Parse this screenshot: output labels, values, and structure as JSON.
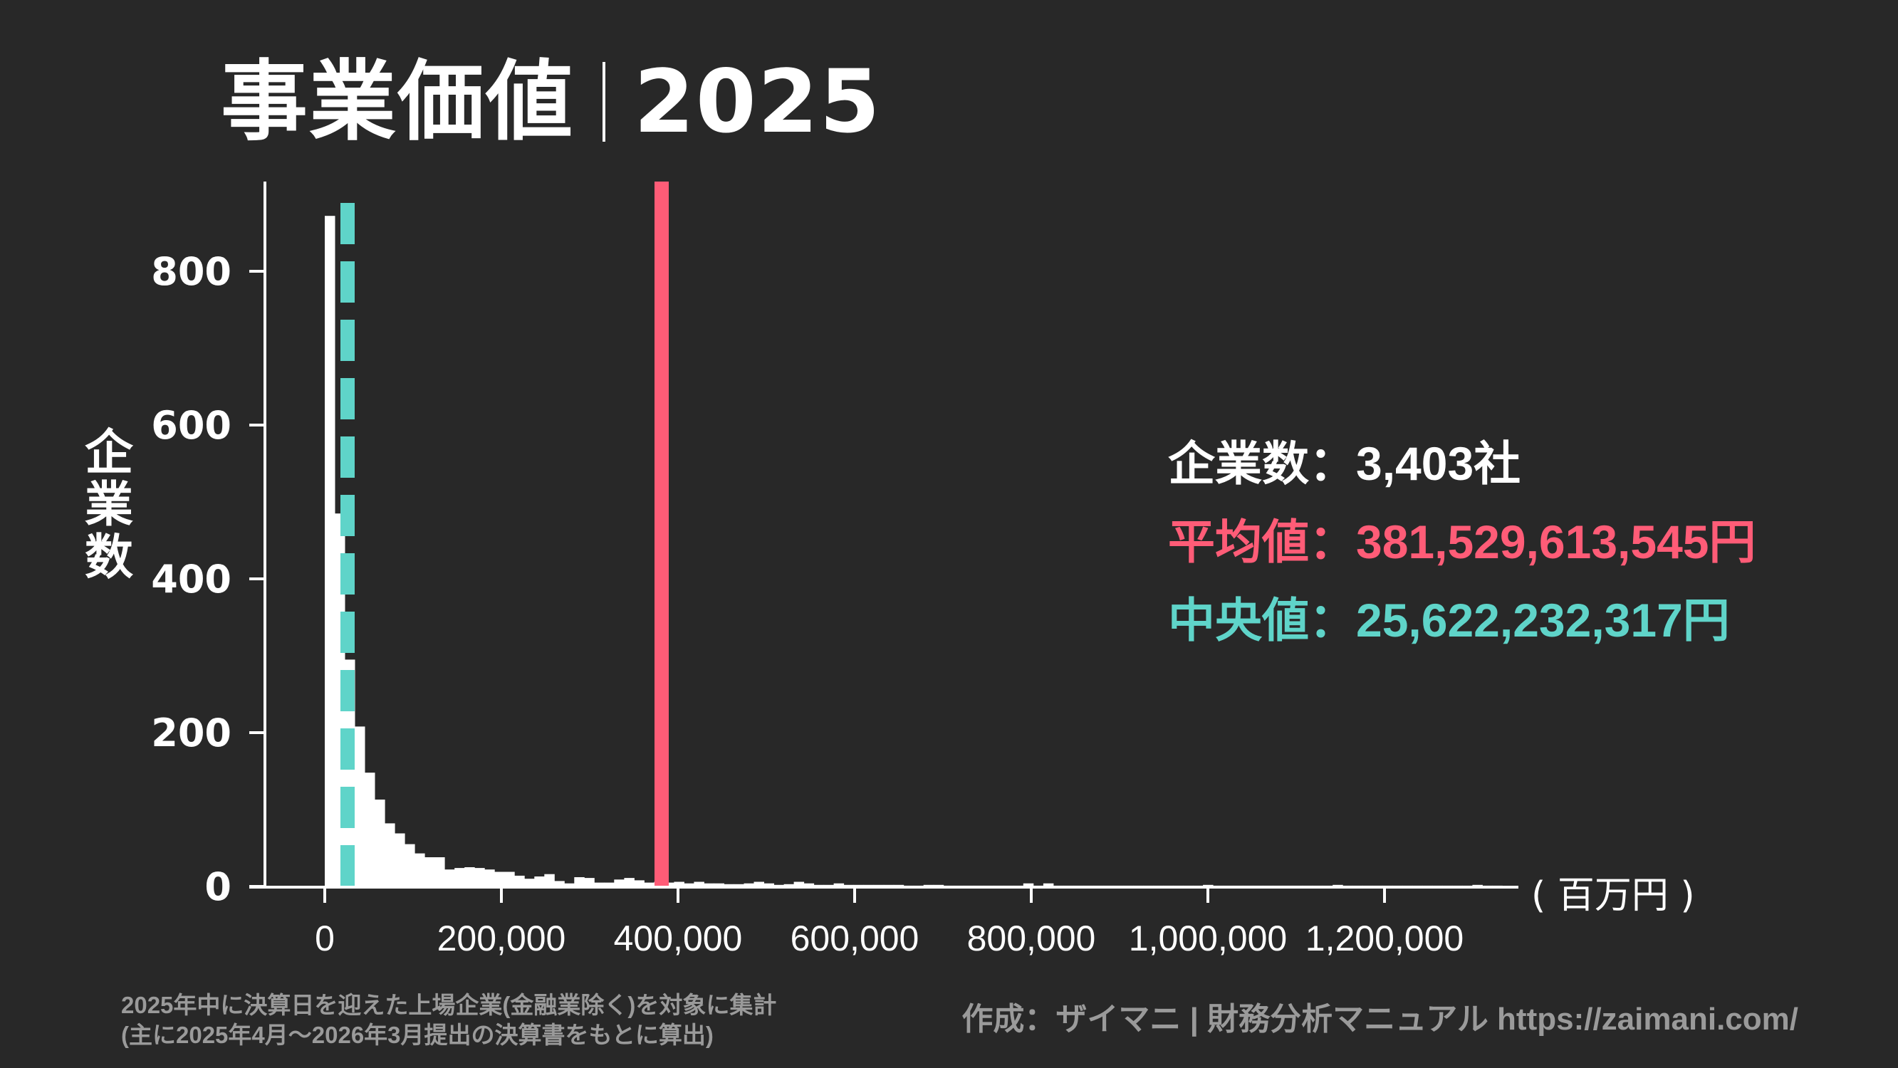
{
  "title": {
    "main": "事業価値",
    "year": "2025"
  },
  "axes": {
    "ylabel": "企業数",
    "xunit": "( 百万円 )",
    "yticks": [
      "0",
      "200",
      "400",
      "600",
      "800"
    ],
    "xticks": [
      "0",
      "200,000",
      "400,000",
      "600,000",
      "800,000",
      "1,000,000",
      "1,200,000"
    ]
  },
  "stats": {
    "count_label": "企業数：",
    "count_value": "3,403社",
    "mean_label": "平均値：",
    "mean_value": "381,529,613,545円",
    "median_label": "中央値：",
    "median_value": "25,622,232,317円"
  },
  "colors": {
    "background": "#282828",
    "bars": "#ffffff",
    "mean": "#ff5c77",
    "median": "#5fd4c9",
    "footer": "#9a9a9a"
  },
  "footer": {
    "note1": "2025年中に決算日を迎えた上場企業(金融業除く)を対象に集計",
    "note2": "(主に2025年4月～2026年3月提出の決算書をもとに算出)",
    "credit": "作成：ザイマニ | 財務分析マニュアル https://zaimani.com/"
  },
  "chart_data": {
    "type": "bar",
    "title": "事業価値 | 2025",
    "xlabel": "事業価値 (百万円)",
    "ylabel": "企業数",
    "xlim": [
      -70000,
      1340000
    ],
    "ylim": [
      0,
      920
    ],
    "grid": false,
    "bin_width": 11300,
    "bin_start": 0,
    "values": [
      872,
      485,
      295,
      208,
      148,
      113,
      82,
      69,
      55,
      43,
      38,
      38,
      22,
      24,
      25,
      24,
      22,
      19,
      19,
      14,
      10,
      13,
      16,
      7,
      4,
      12,
      11,
      5,
      5,
      9,
      11,
      8,
      5,
      6,
      5,
      6,
      4,
      6,
      4,
      4,
      3,
      3,
      4,
      6,
      4,
      2,
      3,
      6,
      4,
      2,
      2,
      4,
      2,
      2,
      2,
      2,
      2,
      2,
      1,
      1,
      2,
      2,
      1,
      1,
      1,
      1,
      1,
      1,
      1,
      1,
      4,
      1,
      4,
      1,
      1,
      1,
      1,
      1,
      1,
      1,
      1,
      1,
      1,
      1,
      1,
      1,
      1,
      1,
      2,
      1,
      1,
      1,
      1,
      1,
      1,
      1,
      1,
      1,
      1,
      1,
      1,
      2,
      1,
      1,
      1,
      1,
      1,
      1,
      1,
      1,
      1,
      1,
      1,
      1,
      1,
      2,
      1,
      1
    ],
    "annotations": [
      {
        "type": "vline",
        "label": "平均値",
        "x": 381530,
        "color": "#ff5c77",
        "style": "solid"
      },
      {
        "type": "vline",
        "label": "中央値",
        "x": 25622,
        "color": "#5fd4c9",
        "style": "dashed"
      }
    ],
    "summary": {
      "count": 3403,
      "mean_yen": 381529613545,
      "median_yen": 25622232317
    }
  }
}
